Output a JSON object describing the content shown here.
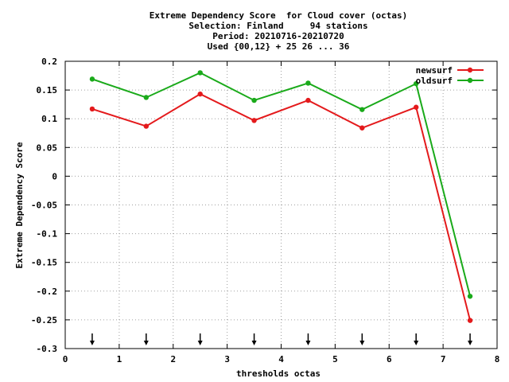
{
  "chart_data": {
    "type": "line",
    "title_lines": [
      "Extreme Dependency Score  for Cloud cover (octas)",
      "Selection: Finland     94 stations",
      "Period: 20210716-20210720",
      "Used {00,12} + 25 26 ... 36"
    ],
    "xlabel": "thresholds octas",
    "ylabel": "Extreme Dependency Score",
    "xlim": [
      0,
      8
    ],
    "ylim": [
      -0.3,
      0.2
    ],
    "x_ticks": [
      0,
      1,
      2,
      3,
      4,
      5,
      6,
      7,
      8
    ],
    "y_ticks": [
      -0.3,
      -0.25,
      -0.2,
      -0.15,
      -0.1,
      -0.05,
      0,
      0.05,
      0.1,
      0.15,
      0.2
    ],
    "x_tick_labels": [
      "0",
      "1",
      "2",
      "3",
      "4",
      "5",
      "6",
      "7",
      "8"
    ],
    "y_tick_labels": [
      "-0.3",
      "-0.25",
      "-0.2",
      "-0.15",
      "-0.1",
      "-0.05",
      "0",
      "0.05",
      "0.1",
      "0.15",
      "0.2"
    ],
    "grid": true,
    "legend_position": "top-right",
    "x": [
      0.5,
      1.5,
      2.5,
      3.5,
      4.5,
      5.5,
      6.5,
      7.5
    ],
    "series": [
      {
        "name": "newsurf",
        "color": "#e41a1c",
        "values": [
          0.117,
          0.087,
          0.143,
          0.097,
          0.132,
          0.084,
          0.12,
          -0.251
        ]
      },
      {
        "name": "oldsurf",
        "color": "#1aaa1a",
        "values": [
          0.169,
          0.137,
          0.18,
          0.132,
          0.162,
          0.116,
          0.161,
          -0.209
        ]
      }
    ],
    "arrow_markers_x": [
      0.5,
      1.5,
      2.5,
      3.5,
      4.5,
      5.5,
      6.5,
      7.5
    ]
  }
}
